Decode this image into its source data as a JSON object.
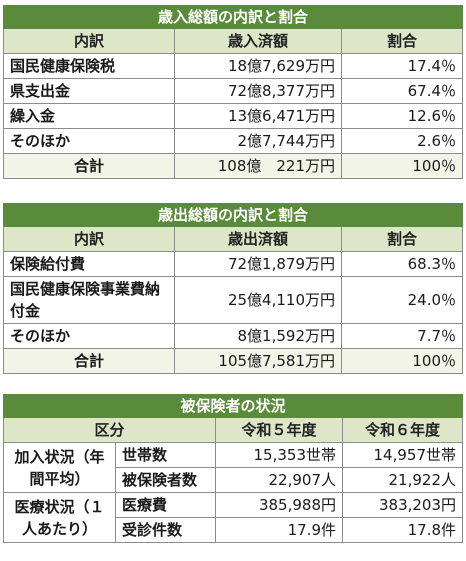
{
  "revenue": {
    "title": "歳入総額の内訳と割合",
    "headers": [
      "内訳",
      "歳入済額",
      "割合"
    ],
    "rows": [
      {
        "label": "国民健康保険税",
        "amount": "18億7,629万円",
        "ratio": "17.4％"
      },
      {
        "label": "県支出金",
        "amount": "72億8,377万円",
        "ratio": "67.4％"
      },
      {
        "label": "繰入金",
        "amount": "13億6,471万円",
        "ratio": "12.6％"
      },
      {
        "label": "そのほか",
        "amount": "2億7,744万円",
        "ratio": "2.6％"
      }
    ],
    "total": {
      "label": "合計",
      "amount": "108億　221万円",
      "ratio": "100％"
    }
  },
  "expenditure": {
    "title": "歳出総額の内訳と割合",
    "headers": [
      "内訳",
      "歳出済額",
      "割合"
    ],
    "rows": [
      {
        "label": "保険給付費",
        "amount": "72億1,879万円",
        "ratio": "68.3％"
      },
      {
        "label": "国民健康保険事業費納付金",
        "amount": "25億4,110万円",
        "ratio": "24.0％"
      },
      {
        "label": "そのほか",
        "amount": "8億1,592万円",
        "ratio": "7.7％"
      }
    ],
    "total": {
      "label": "合計",
      "amount": "105億7,581万円",
      "ratio": "100％"
    }
  },
  "insured": {
    "title": "被保険者の状況",
    "headers": [
      "区分",
      "令和５年度",
      "令和６年度"
    ],
    "groups": [
      {
        "label": "加入状況（年間平均）",
        "rows": [
          {
            "item": "世帯数",
            "r5": "15,353世帯",
            "r6": "14,957世帯"
          },
          {
            "item": "被保険者数",
            "r5": "22,907人",
            "r6": "21,922人"
          }
        ]
      },
      {
        "label": "医療状況（１人あたり）",
        "rows": [
          {
            "item": "医療費",
            "r5": "385,988円",
            "r6": "383,203円"
          },
          {
            "item": "受診件数",
            "r5": "17.9件",
            "r6": "17.8件"
          }
        ]
      }
    ]
  }
}
